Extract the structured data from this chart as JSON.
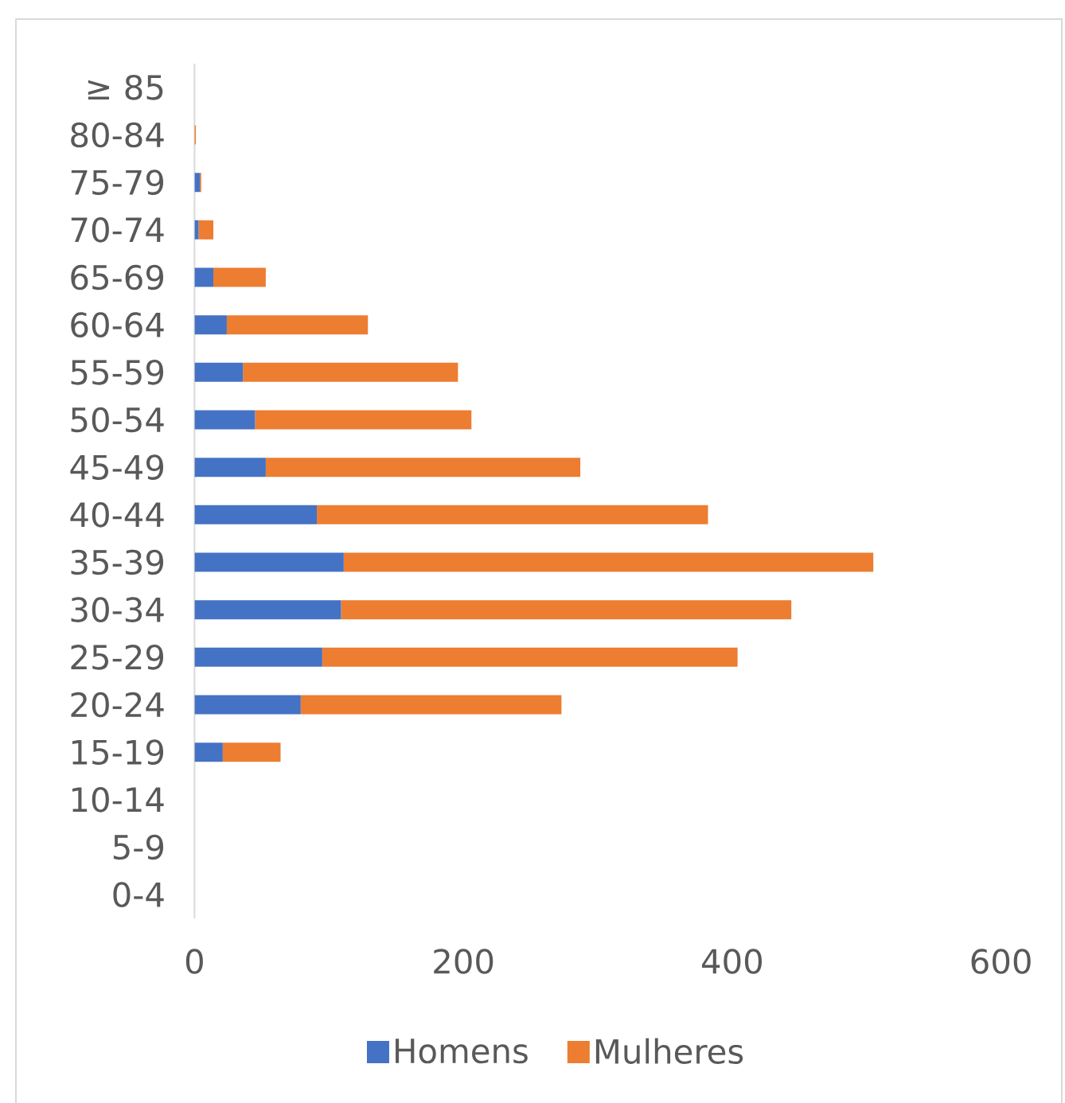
{
  "chart_data": {
    "type": "bar",
    "orientation": "horizontal",
    "stacked": true,
    "categories": [
      "≥ 85",
      "80-84",
      "75-79",
      "70-74",
      "65-69",
      "60-64",
      "55-59",
      "50-54",
      "45-49",
      "40-44",
      "35-39",
      "30-34",
      "25-29",
      "20-24",
      "15-19",
      "10-14",
      "5-9",
      "0-4"
    ],
    "series": [
      {
        "name": "Homens",
        "color": "#4472c4",
        "values": [
          0,
          0,
          4,
          3,
          14,
          24,
          36,
          45,
          53,
          91,
          111,
          109,
          95,
          79,
          21,
          0,
          0,
          0
        ]
      },
      {
        "name": "Mulheres",
        "color": "#ed7d31",
        "values": [
          0,
          1,
          1,
          11,
          39,
          105,
          160,
          161,
          234,
          291,
          394,
          335,
          309,
          194,
          43,
          0,
          0,
          0
        ]
      }
    ],
    "xlim": [
      0,
      600
    ],
    "xticks": [
      0,
      200,
      400,
      600
    ],
    "legend": "bottom"
  }
}
